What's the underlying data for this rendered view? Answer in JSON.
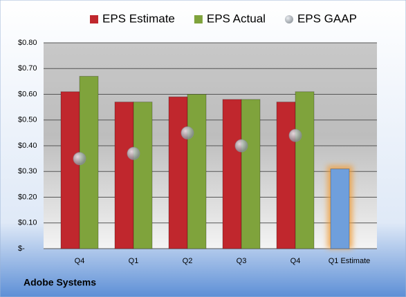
{
  "chart_data": {
    "type": "bar",
    "title": "Adobe Systems",
    "categories": [
      "Q4",
      "Q1",
      "Q2",
      "Q3",
      "Q4",
      "Q1 Estimate"
    ],
    "series": [
      {
        "name": "EPS Estimate",
        "color": "#c0272d",
        "values": [
          0.61,
          0.57,
          0.59,
          0.58,
          0.57,
          0.31
        ],
        "colors": [
          "#c0272d",
          "#c0272d",
          "#c0272d",
          "#c0272d",
          "#c0272d",
          "#6f9fdc"
        ]
      },
      {
        "name": "EPS Actual",
        "color": "#7fa33c",
        "values": [
          0.67,
          0.57,
          0.6,
          0.58,
          0.61,
          null
        ]
      },
      {
        "name": "EPS GAAP",
        "color": "#9aa0a8",
        "marker": "bubble",
        "values": [
          0.35,
          0.37,
          0.45,
          0.4,
          0.44,
          null
        ]
      }
    ],
    "ylim": [
      0,
      0.8
    ],
    "yticks": [
      {
        "value": 0,
        "label": "$-"
      },
      {
        "value": 0.1,
        "label": "$0.10"
      },
      {
        "value": 0.2,
        "label": "$0.20"
      },
      {
        "value": 0.3,
        "label": "$0.30"
      },
      {
        "value": 0.4,
        "label": "$0.40"
      },
      {
        "value": 0.5,
        "label": "$0.50"
      },
      {
        "value": 0.6,
        "label": "$0.60"
      },
      {
        "value": 0.7,
        "label": "$0.70"
      },
      {
        "value": 0.8,
        "label": "$0.80"
      }
    ],
    "grid": true,
    "legend": "top"
  }
}
